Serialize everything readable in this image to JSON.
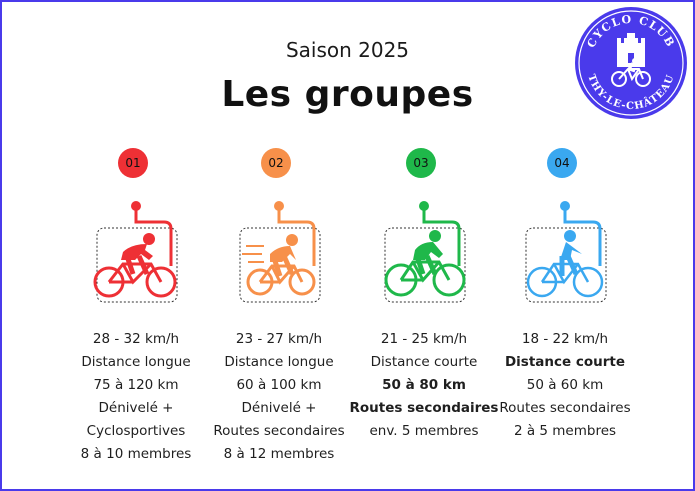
{
  "header": {
    "subtitle": "Saison 2025",
    "title": "Les groupes"
  },
  "logo": {
    "top_text": "CYCLO CLUB",
    "bottom_text": "THY-LE-CHÂTEAU",
    "color": "#4a3aeb"
  },
  "groups": [
    {
      "number": "01",
      "color": "#ee3035",
      "icon": "road-cyclist-icon",
      "speed": "28 - 32 km/h",
      "distance_type": "Distance longue",
      "distance": "75 à 120 km",
      "terrain_1": "Dénivelé +",
      "terrain_2": "Cyclosportives",
      "members": "8 à 10 membres"
    },
    {
      "number": "02",
      "color": "#f7904a",
      "icon": "speeding-cyclist-icon",
      "speed": "23 - 27 km/h",
      "distance_type": "Distance longue",
      "distance": "60 à 100 km",
      "terrain_1": "Dénivelé +",
      "terrain_2": "Routes secondaires",
      "members": "8 à 12 membres"
    },
    {
      "number": "03",
      "color": "#1fb84a",
      "icon": "cyclist-icon",
      "speed": "21 - 25 km/h",
      "distance_type": "Distance courte",
      "distance": "50 à 80 km",
      "terrain_1": "Routes secondaires",
      "members": "env. 5 membres"
    },
    {
      "number": "04",
      "color": "#3aa8f0",
      "icon": "upright-cyclist-icon",
      "speed": "18 - 22 km/h",
      "distance_type": "Distance courte",
      "distance": "50 à 60 km",
      "terrain_1": "Routes secondaires",
      "members": "2 à 5 membres"
    }
  ]
}
